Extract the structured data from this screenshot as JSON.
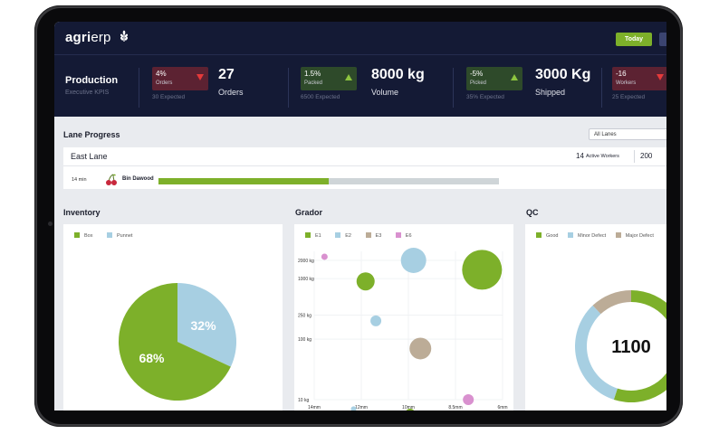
{
  "app": {
    "logo_strong": "agri",
    "logo_light": "erp",
    "logo_icon": "wheat-icon"
  },
  "header": {
    "today_label": "Today"
  },
  "kpi_panel": {
    "title": "Production",
    "subtitle": "Executive KPIS"
  },
  "kpis": [
    {
      "badge_value": "4%",
      "badge_label": "Orders",
      "trend": "down",
      "expected": "30 Expected",
      "value": "27",
      "label": "Orders"
    },
    {
      "badge_value": "1.5%",
      "badge_label": "Packed",
      "trend": "up",
      "expected": "6500 Expected",
      "value": "8000 kg",
      "label": "Volume"
    },
    {
      "badge_value": "-5%",
      "badge_label": "Picked",
      "trend": "up",
      "expected": "35% Expected",
      "value": "3000 Kg",
      "label": "Shipped"
    },
    {
      "badge_value": "-16",
      "badge_label": "Workers",
      "trend": "down",
      "expected": "25 Expected",
      "value": "",
      "label": ""
    }
  ],
  "lane_progress": {
    "title": "Lane Progress",
    "select_value": "All Lanes",
    "lane": {
      "name": "East Lane",
      "active_count": "14",
      "active_label": "Active Workers",
      "extra_value": "200"
    },
    "rows": [
      {
        "time": "14 min",
        "worker": "Bin Dawood",
        "icon": "cherry-icon",
        "progress": 0.5
      }
    ]
  },
  "colors": {
    "navy": "#141a35",
    "green": "#7db02a",
    "blue": "#a7cfe2",
    "tan": "#bcac97",
    "pink": "#d991cf",
    "red": "#e53a3a"
  },
  "inventory": {
    "title": "Inventory",
    "chart_data": {
      "type": "pie",
      "labels": [
        "Box",
        "Punnet"
      ],
      "values": [
        68,
        32
      ],
      "value_labels": [
        "68%",
        "32%"
      ],
      "colors": [
        "#7db02a",
        "#a7cfe2"
      ]
    }
  },
  "grador": {
    "title": "Grador",
    "chart_data": {
      "type": "scatter",
      "series": [
        {
          "name": "E1",
          "color": "#7db02a",
          "points": [
            [
              1.5,
              900,
              10
            ],
            [
              2.8,
              6,
              5
            ],
            [
              4.9,
              1400,
              22
            ]
          ]
        },
        {
          "name": "E2",
          "color": "#a7cfe2",
          "points": [
            [
              1.15,
              7,
              3
            ],
            [
              1.8,
              200,
              6
            ],
            [
              2.9,
              2000,
              14
            ]
          ]
        },
        {
          "name": "E3",
          "color": "#bcac97",
          "points": [
            [
              0.2,
              5,
              5
            ],
            [
              3.1,
              70,
              12
            ]
          ]
        },
        {
          "name": "E6",
          "color": "#d991cf",
          "points": [
            [
              0.3,
              2300,
              3.5
            ],
            [
              4.5,
              10,
              6
            ]
          ]
        }
      ],
      "x_ticks": [
        "14mm",
        "12mm",
        "10mm",
        "8.5mm",
        "6mm"
      ],
      "y_ticks": [
        "2000 kg",
        "1000 kg",
        "250 kg",
        "100 kg",
        "10 kg"
      ],
      "y_scale": "log"
    }
  },
  "qc": {
    "title": "QC",
    "chart_data": {
      "type": "pie",
      "labels": [
        "Good",
        "Minor Defect",
        "Major Defect"
      ],
      "values": [
        55,
        33,
        12
      ],
      "colors": [
        "#7db02a",
        "#a7cfe2",
        "#bcac97"
      ],
      "center_value": "1100"
    }
  }
}
